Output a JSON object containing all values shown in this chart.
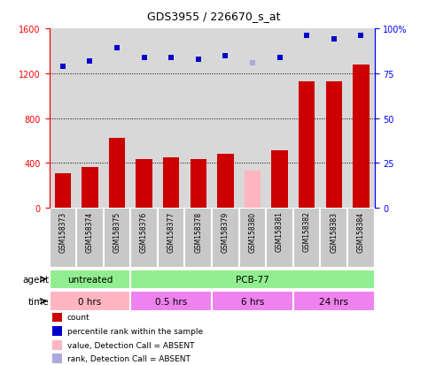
{
  "title": "GDS3955 / 226670_s_at",
  "samples": [
    "GSM158373",
    "GSM158374",
    "GSM158375",
    "GSM158376",
    "GSM158377",
    "GSM158378",
    "GSM158379",
    "GSM158380",
    "GSM158381",
    "GSM158382",
    "GSM158383",
    "GSM158384"
  ],
  "counts": [
    310,
    360,
    620,
    430,
    450,
    430,
    480,
    330,
    510,
    1130,
    1130,
    1280
  ],
  "count_absent": [
    false,
    false,
    false,
    false,
    false,
    false,
    false,
    true,
    false,
    false,
    false,
    false
  ],
  "percentile_ranks_pct": [
    79,
    82,
    89,
    84,
    84,
    83,
    85,
    81,
    84,
    96,
    94,
    96
  ],
  "rank_absent": [
    false,
    false,
    false,
    false,
    false,
    false,
    false,
    true,
    false,
    false,
    false,
    false
  ],
  "ylim_left": [
    0,
    1600
  ],
  "ylim_right": [
    0,
    100
  ],
  "yticks_left": [
    0,
    400,
    800,
    1200,
    1600
  ],
  "yticks_right": [
    0,
    25,
    50,
    75,
    100
  ],
  "ytick_right_labels": [
    "0",
    "25",
    "50",
    "75",
    "100%"
  ],
  "agent_groups": [
    {
      "label": "untreated",
      "start": 0,
      "end": 3,
      "color": "#90EE90"
    },
    {
      "label": "PCB-77",
      "start": 3,
      "end": 12,
      "color": "#90EE90"
    }
  ],
  "time_groups": [
    {
      "label": "0 hrs",
      "start": 0,
      "end": 3,
      "color": "#FFB6C1"
    },
    {
      "label": "0.5 hrs",
      "start": 3,
      "end": 6,
      "color": "#EE82EE"
    },
    {
      "label": "6 hrs",
      "start": 6,
      "end": 9,
      "color": "#EE82EE"
    },
    {
      "label": "24 hrs",
      "start": 9,
      "end": 12,
      "color": "#EE82EE"
    }
  ],
  "bar_color_normal": "#CC0000",
  "bar_color_absent": "#FFB6C1",
  "rank_color_normal": "#0000CC",
  "rank_color_absent": "#AAAADD",
  "agent_label": "agent",
  "time_label": "time",
  "legend_items": [
    {
      "color": "#CC0000",
      "label": "count",
      "marker": "square"
    },
    {
      "color": "#0000CC",
      "label": "percentile rank within the sample",
      "marker": "square"
    },
    {
      "color": "#FFB6C1",
      "label": "value, Detection Call = ABSENT",
      "marker": "square"
    },
    {
      "color": "#AAAADD",
      "label": "rank, Detection Call = ABSENT",
      "marker": "square"
    }
  ],
  "sample_box_color": "#C8C8C8",
  "background_color": "#FFFFFF",
  "plot_bg_color": "#D8D8D8"
}
